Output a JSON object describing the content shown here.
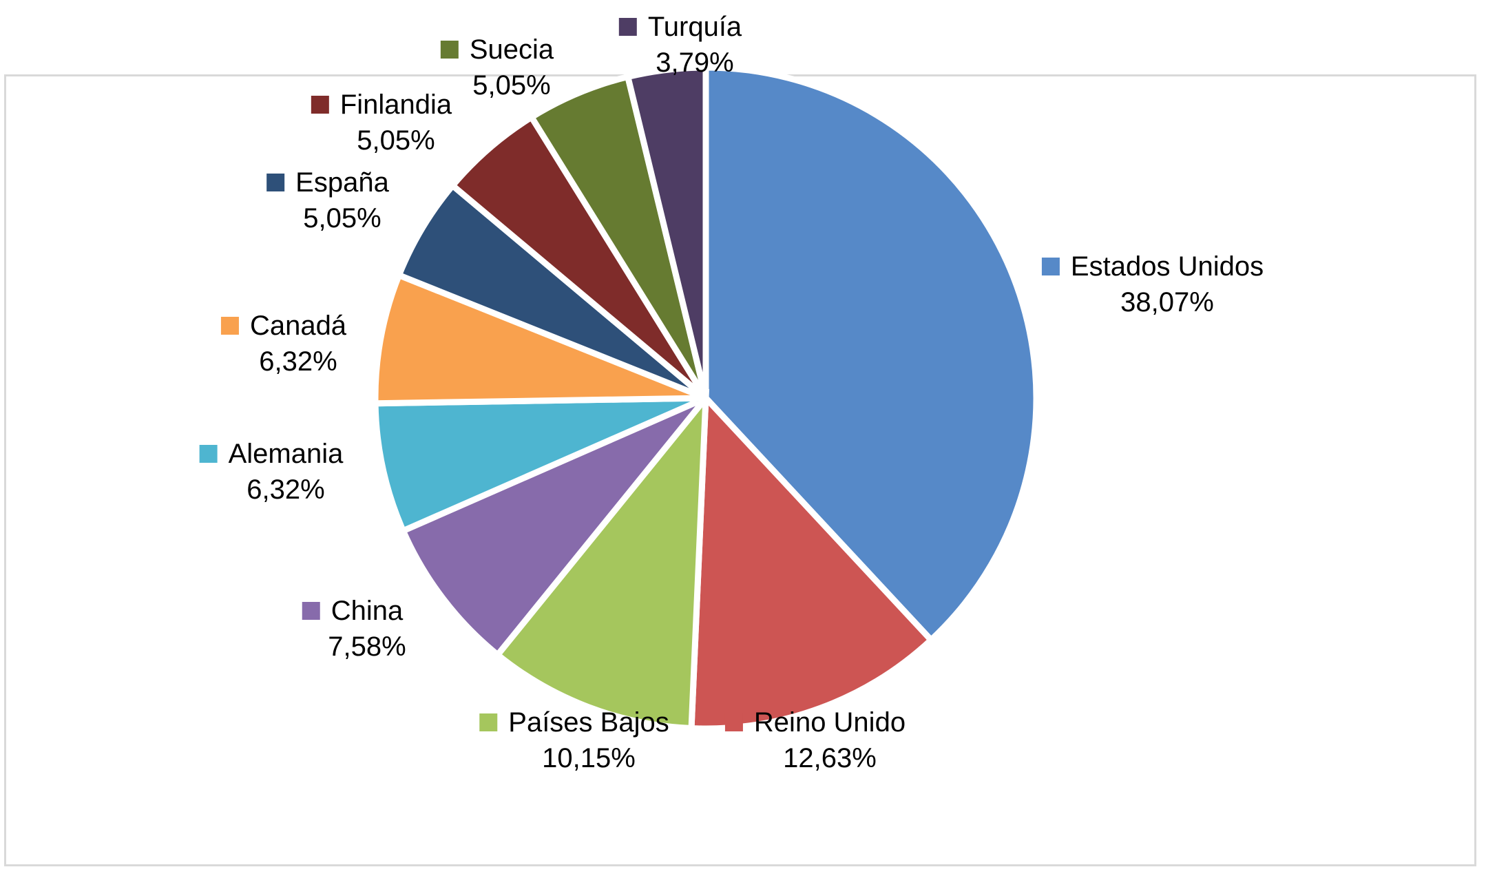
{
  "chart_data": {
    "type": "pie",
    "title": "",
    "legend": "none",
    "slices": [
      {
        "label": "Estados Unidos",
        "value": 38.07,
        "value_label": "38,07%",
        "color": "#5689C8"
      },
      {
        "label": "Reino Unido",
        "value": 12.63,
        "value_label": "12,63%",
        "color": "#CD5553"
      },
      {
        "label": "Países Bajos",
        "value": 10.15,
        "value_label": "10,15%",
        "color": "#A5C65D"
      },
      {
        "label": "China",
        "value": 7.58,
        "value_label": "7,58%",
        "color": "#876BAB"
      },
      {
        "label": "Alemania",
        "value": 6.32,
        "value_label": "6,32%",
        "color": "#4EB5D0"
      },
      {
        "label": "Canadá",
        "value": 6.32,
        "value_label": "6,32%",
        "color": "#F9A14E"
      },
      {
        "label": "España",
        "value": 5.05,
        "value_label": "5,05%",
        "color": "#2E5079"
      },
      {
        "label": "Finlandia",
        "value": 5.05,
        "value_label": "5,05%",
        "color": "#7F2C2A"
      },
      {
        "label": "Suecia",
        "value": 5.05,
        "value_label": "5,05%",
        "color": "#667B31"
      },
      {
        "label": "Turquía",
        "value": 3.79,
        "value_label": "3,79%",
        "color": "#4E3D64"
      }
    ]
  }
}
